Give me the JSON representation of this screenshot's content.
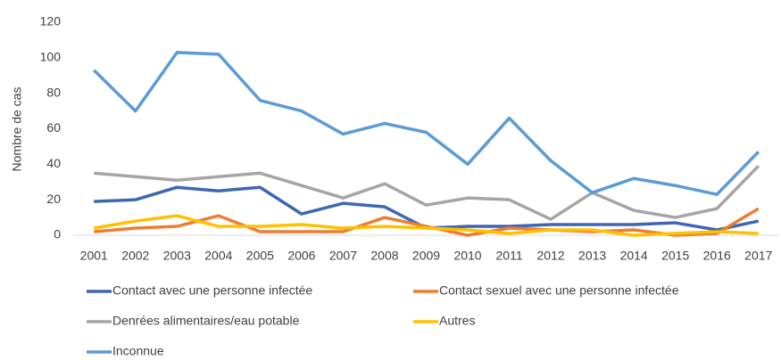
{
  "chart_data": {
    "type": "line",
    "y_label": "Nombre de cas",
    "categories": [
      "2001",
      "2002",
      "2003",
      "2004",
      "2005",
      "2006",
      "2007",
      "2008",
      "2009",
      "2010",
      "2011",
      "2012",
      "2013",
      "2014",
      "2015",
      "2016",
      "2017"
    ],
    "series": [
      {
        "name": "Contact avec une personne infectée",
        "color": "#3f67b1",
        "values": [
          19,
          20,
          27,
          25,
          27,
          12,
          18,
          16,
          4,
          5,
          5,
          6,
          6,
          6,
          7,
          3,
          8
        ]
      },
      {
        "name": "Contact sexuel avec une personne infectée",
        "color": "#ed7d31",
        "values": [
          2,
          4,
          5,
          11,
          2,
          2,
          2,
          10,
          5,
          0,
          4,
          3,
          2,
          3,
          0,
          1,
          15
        ]
      },
      {
        "name": "Denrées alimentaires/eau potable",
        "color": "#a5a5a5",
        "values": [
          35,
          33,
          31,
          33,
          35,
          28,
          21,
          29,
          17,
          21,
          20,
          9,
          24,
          14,
          10,
          15,
          39
        ]
      },
      {
        "name": "Autres",
        "color": "#ffc000",
        "values": [
          4,
          8,
          11,
          5,
          5,
          6,
          4,
          5,
          4,
          3,
          1,
          3,
          3,
          0,
          1,
          2,
          1
        ]
      },
      {
        "name": "Inconnue",
        "color": "#5b9bd5",
        "values": [
          93,
          70,
          103,
          102,
          76,
          70,
          57,
          63,
          58,
          40,
          66,
          42,
          24,
          32,
          28,
          23,
          47
        ]
      }
    ],
    "ylim": [
      0,
      120
    ],
    "yticks": [
      0,
      20,
      40,
      60,
      80,
      100,
      120
    ],
    "grid": false
  }
}
